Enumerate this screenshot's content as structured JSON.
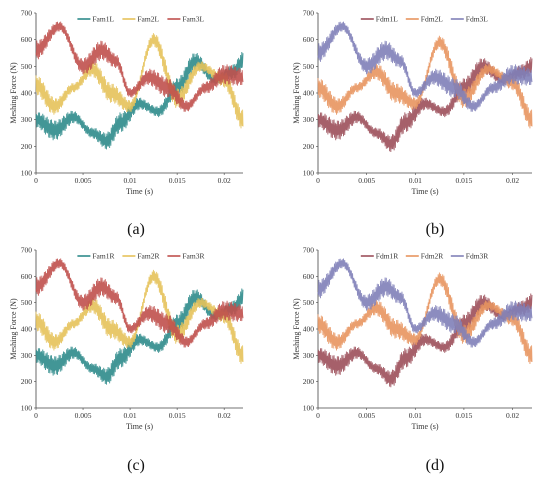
{
  "chart_data": [
    {
      "panel": "(a)",
      "type": "line",
      "xlabel": "Time (s)",
      "ylabel": "Meshing Force (N)",
      "xlim": [
        0,
        0.022
      ],
      "ylim": [
        100,
        700
      ],
      "xticks": [
        "0",
        "0.005",
        "0.01",
        "0.015",
        "0.02"
      ],
      "yticks": [
        "100",
        "200",
        "300",
        "400",
        "500",
        "600",
        "700"
      ],
      "legend": "top-center",
      "series": [
        {
          "name": "Fam1L",
          "color": "#2E8B8B",
          "x": [
            0,
            0.002,
            0.004,
            0.006,
            0.0075,
            0.009,
            0.011,
            0.013,
            0.015,
            0.017,
            0.019,
            0.021,
            0.022
          ],
          "values": [
            300,
            260,
            310,
            250,
            220,
            290,
            360,
            330,
            420,
            520,
            450,
            480,
            520
          ]
        },
        {
          "name": "Fam2L",
          "color": "#E6C25A",
          "x": [
            0,
            0.002,
            0.004,
            0.006,
            0.008,
            0.01,
            0.0125,
            0.015,
            0.0175,
            0.02,
            0.022
          ],
          "values": [
            430,
            350,
            420,
            490,
            400,
            350,
            600,
            380,
            500,
            450,
            300
          ]
        },
        {
          "name": "Fam3L",
          "color": "#C0504D",
          "x": [
            0,
            0.0025,
            0.005,
            0.007,
            0.0085,
            0.01,
            0.012,
            0.014,
            0.016,
            0.018,
            0.02,
            0.022
          ],
          "values": [
            560,
            650,
            500,
            560,
            520,
            400,
            460,
            420,
            350,
            420,
            470,
            460
          ]
        }
      ]
    },
    {
      "panel": "(b)",
      "type": "line",
      "xlabel": "Time (s)",
      "ylabel": "Meshing Force (N)",
      "xlim": [
        0,
        0.022
      ],
      "ylim": [
        100,
        700
      ],
      "xticks": [
        "0",
        "0.005",
        "0.01",
        "0.015",
        "0.02"
      ],
      "yticks": [
        "100",
        "200",
        "300",
        "400",
        "500",
        "600",
        "700"
      ],
      "legend": "top-center",
      "series": [
        {
          "name": "Fdm1L",
          "color": "#9C4F5A",
          "x": [
            0,
            0.002,
            0.004,
            0.006,
            0.0075,
            0.009,
            0.011,
            0.013,
            0.015,
            0.017,
            0.019,
            0.021,
            0.022
          ],
          "values": [
            300,
            260,
            310,
            250,
            210,
            290,
            360,
            330,
            420,
            500,
            450,
            480,
            500
          ]
        },
        {
          "name": "Fdm2L",
          "color": "#E8955F",
          "x": [
            0,
            0.002,
            0.004,
            0.006,
            0.008,
            0.01,
            0.0125,
            0.015,
            0.0175,
            0.02,
            0.022
          ],
          "values": [
            420,
            350,
            420,
            480,
            400,
            360,
            590,
            380,
            490,
            440,
            300
          ]
        },
        {
          "name": "Fdm3L",
          "color": "#8080B8",
          "x": [
            0,
            0.0025,
            0.005,
            0.007,
            0.0085,
            0.01,
            0.012,
            0.014,
            0.016,
            0.018,
            0.02,
            0.022
          ],
          "values": [
            550,
            650,
            500,
            560,
            520,
            400,
            460,
            420,
            350,
            420,
            470,
            460
          ]
        }
      ]
    },
    {
      "panel": "(c)",
      "type": "line",
      "xlabel": "Time (s)",
      "ylabel": "Meshing Force (N)",
      "xlim": [
        0,
        0.022
      ],
      "ylim": [
        100,
        700
      ],
      "xticks": [
        "0",
        "0.005",
        "0.01",
        "0.015",
        "0.02"
      ],
      "yticks": [
        "100",
        "200",
        "300",
        "400",
        "500",
        "600",
        "700"
      ],
      "legend": "top-center",
      "series": [
        {
          "name": "Fam1R",
          "color": "#2E8B8B",
          "x": [
            0,
            0.002,
            0.004,
            0.006,
            0.0075,
            0.009,
            0.011,
            0.013,
            0.015,
            0.017,
            0.019,
            0.021,
            0.022
          ],
          "values": [
            300,
            260,
            310,
            250,
            220,
            290,
            360,
            330,
            420,
            520,
            450,
            480,
            520
          ]
        },
        {
          "name": "Fam2R",
          "color": "#E6C25A",
          "x": [
            0,
            0.002,
            0.004,
            0.006,
            0.008,
            0.01,
            0.0125,
            0.015,
            0.0175,
            0.02,
            0.022
          ],
          "values": [
            430,
            350,
            420,
            490,
            400,
            350,
            600,
            380,
            500,
            450,
            300
          ]
        },
        {
          "name": "Fam3R",
          "color": "#C0504D",
          "x": [
            0,
            0.0025,
            0.005,
            0.007,
            0.0085,
            0.01,
            0.012,
            0.014,
            0.016,
            0.018,
            0.02,
            0.022
          ],
          "values": [
            560,
            650,
            500,
            560,
            520,
            400,
            460,
            420,
            350,
            420,
            470,
            460
          ]
        }
      ]
    },
    {
      "panel": "(d)",
      "type": "line",
      "xlabel": "Time (s)",
      "ylabel": "Meshing Force (N)",
      "xlim": [
        0,
        0.022
      ],
      "ylim": [
        100,
        700
      ],
      "xticks": [
        "0",
        "0.005",
        "0.01",
        "0.015",
        "0.02"
      ],
      "yticks": [
        "100",
        "200",
        "300",
        "400",
        "500",
        "600",
        "700"
      ],
      "legend": "top-center",
      "series": [
        {
          "name": "Fdm1R",
          "color": "#9C4F5A",
          "x": [
            0,
            0.002,
            0.004,
            0.006,
            0.0075,
            0.009,
            0.011,
            0.013,
            0.015,
            0.017,
            0.019,
            0.021,
            0.022
          ],
          "values": [
            300,
            260,
            310,
            250,
            210,
            290,
            360,
            330,
            420,
            500,
            450,
            480,
            500
          ]
        },
        {
          "name": "Fdm2R",
          "color": "#E8955F",
          "x": [
            0,
            0.002,
            0.004,
            0.006,
            0.008,
            0.01,
            0.0125,
            0.015,
            0.0175,
            0.02,
            0.022
          ],
          "values": [
            420,
            350,
            420,
            480,
            400,
            360,
            590,
            380,
            490,
            440,
            300
          ]
        },
        {
          "name": "Fdm3R",
          "color": "#8080B8",
          "x": [
            0,
            0.0025,
            0.005,
            0.007,
            0.0085,
            0.01,
            0.012,
            0.014,
            0.016,
            0.018,
            0.02,
            0.022
          ],
          "values": [
            550,
            650,
            500,
            560,
            520,
            400,
            460,
            420,
            350,
            420,
            470,
            460
          ]
        }
      ]
    }
  ]
}
